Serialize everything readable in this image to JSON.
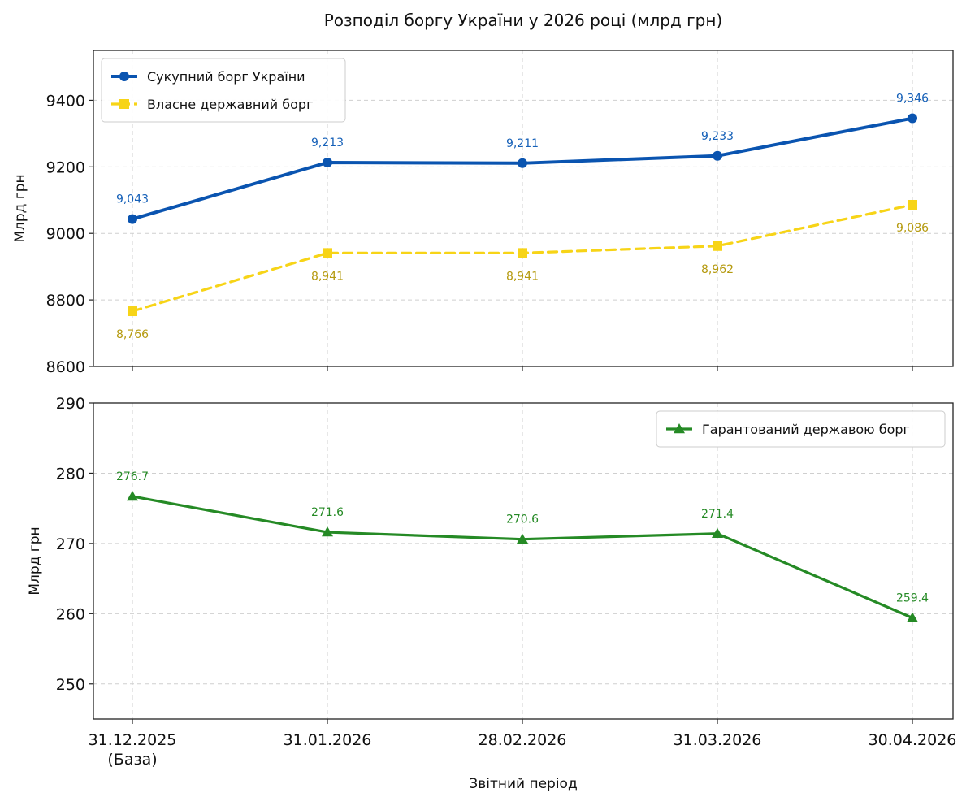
{
  "title": "Розподіл боргу України у 2026 році (млрд грн)",
  "xlabel": "Звітний період",
  "categories": [
    [
      "31.12.2025",
      "(База)"
    ],
    [
      "31.01.2026"
    ],
    [
      "28.02.2026"
    ],
    [
      "31.03.2026"
    ],
    [
      "30.04.2026"
    ]
  ],
  "chart_data": [
    {
      "type": "line",
      "ylabel": "Млрд грн",
      "ylim": [
        8600,
        9550
      ],
      "yticks": [
        "8600",
        "8800",
        "9000",
        "9200",
        "9400"
      ],
      "ytick_values": [
        8600,
        8800,
        9000,
        9200,
        9400
      ],
      "grid": true,
      "legend_position": "top-left",
      "series": [
        {
          "name": "Сукупний борг України",
          "values": [
            9043,
            9213,
            9211,
            9233,
            9346
          ],
          "labels": [
            "9,043",
            "9,213",
            "9,211",
            "9,233",
            "9,346"
          ],
          "color": "#0a54b0",
          "label_color": "#1560b8",
          "marker": "circle",
          "line_style": "solid",
          "label_position": "above"
        },
        {
          "name": "Власне державний борг",
          "values": [
            8766,
            8941,
            8941,
            8962,
            9086
          ],
          "labels": [
            "8,766",
            "8,941",
            "8,941",
            "8,962",
            "9,086"
          ],
          "color": "#f7d417",
          "label_color": "#b59a0f",
          "marker": "square",
          "line_style": "dashed",
          "label_position": "below"
        }
      ]
    },
    {
      "type": "line",
      "ylabel": "Млрд грн",
      "ylim": [
        245,
        290
      ],
      "yticks": [
        "250",
        "260",
        "270",
        "280",
        "290"
      ],
      "ytick_values": [
        250,
        260,
        270,
        280,
        290
      ],
      "grid": true,
      "legend_position": "top-right",
      "series": [
        {
          "name": "Гарантований державою борг",
          "values": [
            276.7,
            271.6,
            270.6,
            271.4,
            259.4
          ],
          "labels": [
            "276.7",
            "271.6",
            "270.6",
            "271.4",
            "259.4"
          ],
          "color": "#258a25",
          "label_color": "#258a25",
          "marker": "triangle",
          "line_style": "solid",
          "label_position": "above"
        }
      ]
    }
  ]
}
